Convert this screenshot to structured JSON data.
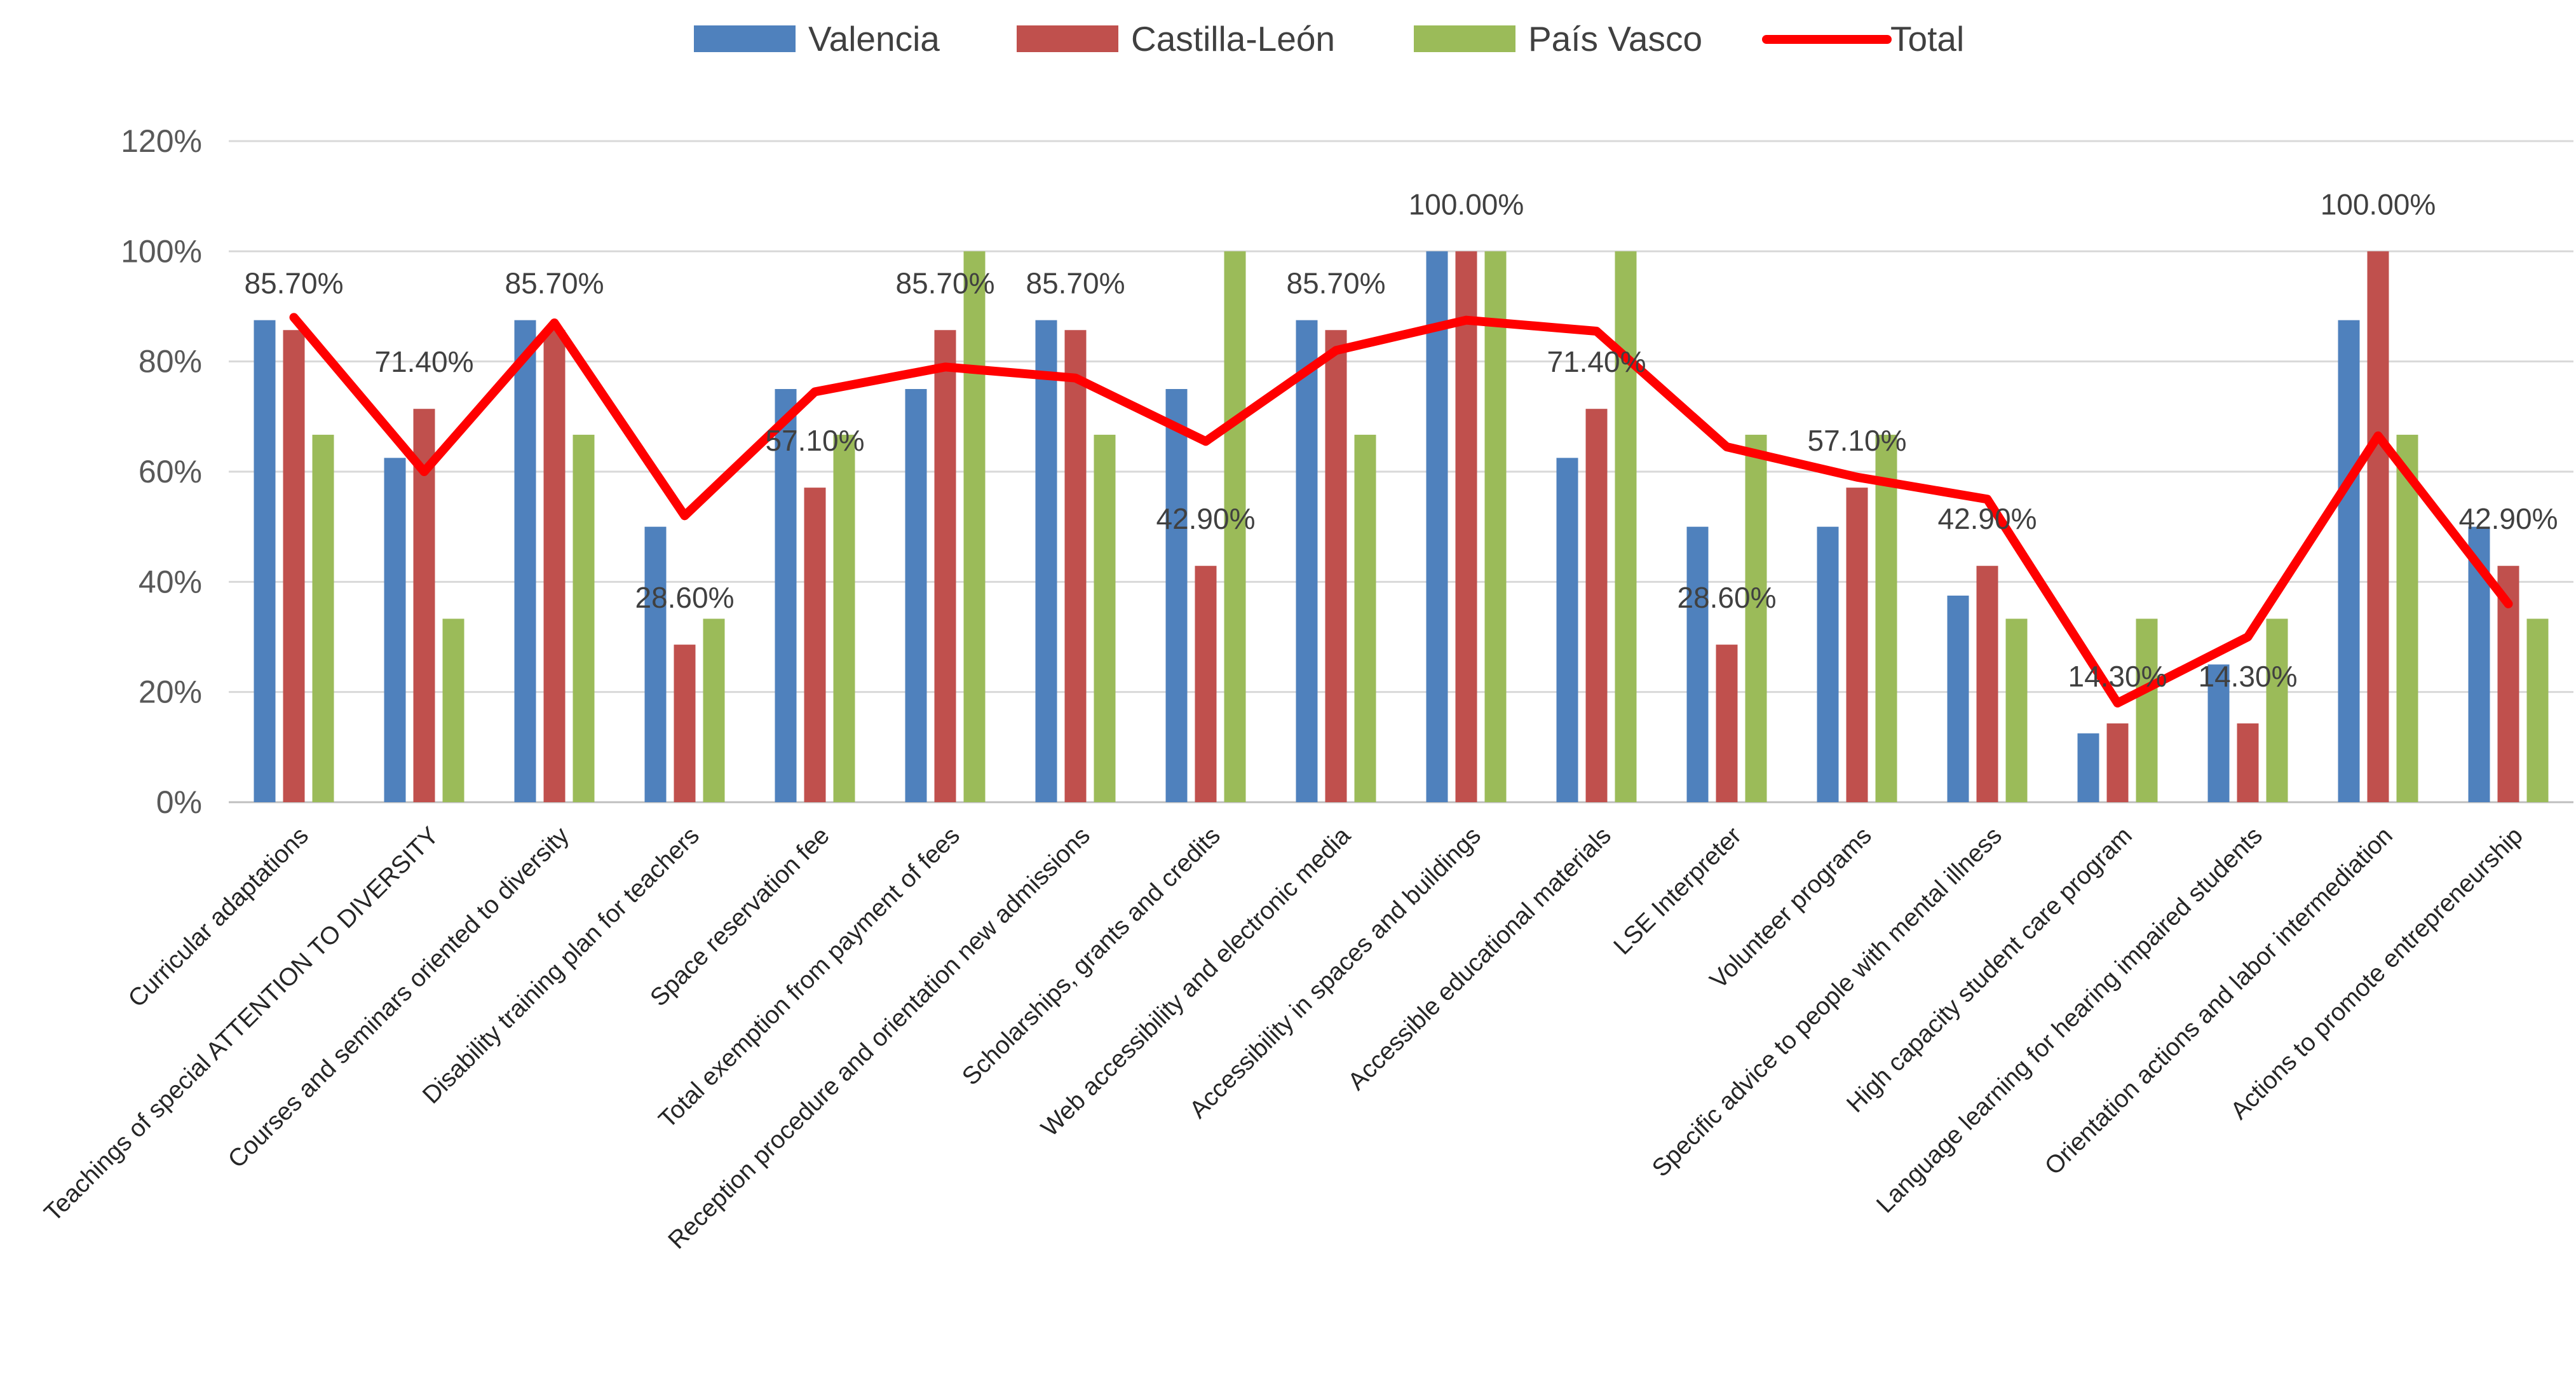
{
  "chart_data": {
    "type": "bar",
    "title": "",
    "xlabel": "",
    "ylabel": "",
    "ylim": [
      0,
      1.2
    ],
    "yticks": [
      0,
      0.2,
      0.4,
      0.6,
      0.8,
      1.0,
      1.2
    ],
    "ytick_labels": [
      "0%",
      "20%",
      "40%",
      "60%",
      "80%",
      "100%",
      "120%"
    ],
    "grid": true,
    "legend_position": "top",
    "categories": [
      "Curricular adaptations",
      "Teachings of special ATTENTION TO DIVERSITY",
      "Courses and seminars oriented to diversity",
      "Disability training plan for teachers",
      "Space reservation fee",
      "Total exemption from payment of fees",
      "Reception procedure and orientation new admissions",
      "Scholarships, grants and credits",
      "Web accessibility and electronic media",
      "Accessibility in spaces and buildings",
      "Accessible educational materials",
      "LSE Interpreter",
      "Volunteer programs",
      "Specific advice to people with mental illness",
      "High capacity student care program",
      "Language learning for hearing impaired students",
      "Orientation actions and labor intermediation",
      "Actions to promote entrepreneurship"
    ],
    "series": [
      {
        "name": "Valencia",
        "kind": "bar",
        "color": "#4F81BD",
        "values": [
          0.875,
          0.625,
          0.875,
          0.5,
          0.75,
          0.75,
          0.875,
          0.75,
          0.875,
          1.0,
          0.625,
          0.5,
          0.5,
          0.375,
          0.125,
          0.25,
          0.875,
          0.5
        ]
      },
      {
        "name": "Castilla-León",
        "kind": "bar",
        "color": "#C0504D",
        "values": [
          0.857,
          0.714,
          0.857,
          0.286,
          0.571,
          0.857,
          0.857,
          0.429,
          0.857,
          1.0,
          0.714,
          0.286,
          0.571,
          0.429,
          0.143,
          0.143,
          1.0,
          0.429
        ],
        "data_labels": [
          "85.70%",
          "71.40%",
          "85.70%",
          "28.60%",
          "57.10%",
          "85.70%",
          "85.70%",
          "42.90%",
          "85.70%",
          "100.00%",
          "71.40%",
          "28.60%",
          "57.10%",
          "42.90%",
          "14.30%",
          "14.30%",
          "100.00%",
          "42.90%"
        ]
      },
      {
        "name": "País Vasco",
        "kind": "bar",
        "color": "#9BBB59",
        "values": [
          0.667,
          0.333,
          0.667,
          0.333,
          0.667,
          1.0,
          0.667,
          1.0,
          0.667,
          1.0,
          1.0,
          0.667,
          0.667,
          0.333,
          0.333,
          0.333,
          0.667,
          0.333
        ]
      },
      {
        "name": "Total",
        "kind": "line",
        "color": "#FF0000",
        "values": [
          0.88,
          0.6,
          0.87,
          0.52,
          0.745,
          0.79,
          0.77,
          0.655,
          0.82,
          0.875,
          0.855,
          0.645,
          0.59,
          0.55,
          0.18,
          0.3,
          0.665,
          0.36
        ]
      }
    ],
    "label_offsets_note": "data labels shown above the Castilla-León bars"
  }
}
